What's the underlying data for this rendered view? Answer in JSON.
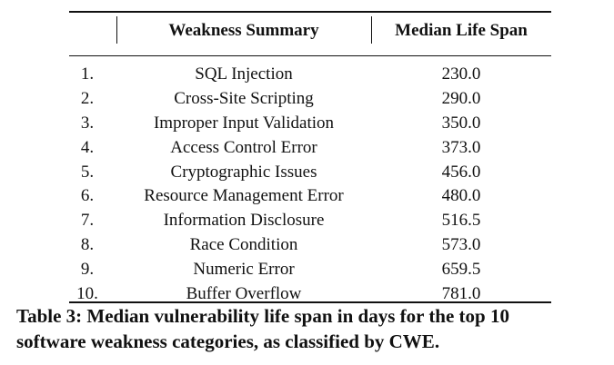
{
  "table": {
    "headers": {
      "index": "",
      "weakness": "Weakness Summary",
      "median": "Median Life Span"
    },
    "rows": [
      {
        "index": "1.",
        "weakness": "SQL Injection",
        "median": "230.0"
      },
      {
        "index": "2.",
        "weakness": "Cross-Site Scripting",
        "median": "290.0"
      },
      {
        "index": "3.",
        "weakness": "Improper Input Validation",
        "median": "350.0"
      },
      {
        "index": "4.",
        "weakness": "Access Control Error",
        "median": "373.0"
      },
      {
        "index": "5.",
        "weakness": "Cryptographic Issues",
        "median": "456.0"
      },
      {
        "index": "6.",
        "weakness": "Resource Management Error",
        "median": "480.0"
      },
      {
        "index": "7.",
        "weakness": "Information Disclosure",
        "median": "516.5"
      },
      {
        "index": "8.",
        "weakness": "Race Condition",
        "median": "573.0"
      },
      {
        "index": "9.",
        "weakness": "Numeric Error",
        "median": "659.5"
      },
      {
        "index": "10.",
        "weakness": "Buffer Overflow",
        "median": "781.0"
      }
    ]
  },
  "caption": {
    "line1": "Table 3: Median vulnerability life span in days for the top 10",
    "line2": "software weakness categories, as classified by CWE."
  }
}
